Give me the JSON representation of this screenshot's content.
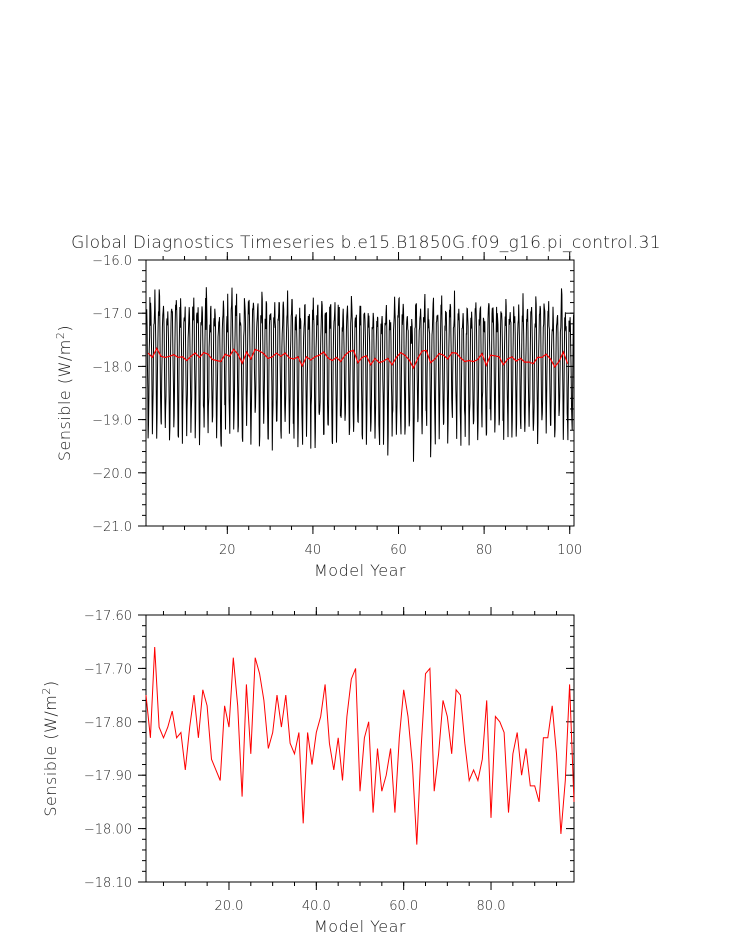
{
  "title": "Global Diagnostics Timeseries b.e15.B1850G.f09_g16.pi_control.31",
  "chart_data": [
    {
      "type": "line",
      "xlabel": "Model Year",
      "ylabel": "Sensible (W/m²)",
      "xlim": [
        1,
        101
      ],
      "ylim": [
        -21.0,
        -16.0
      ],
      "x_ticks": [
        20,
        40,
        60,
        80,
        100
      ],
      "x_tick_labels": [
        "20",
        "40",
        "60",
        "80",
        "100"
      ],
      "y_ticks": [
        -16.0,
        -17.0,
        -18.0,
        -19.0,
        -20.0,
        -21.0
      ],
      "y_tick_labels": [
        "-16.0",
        "-17.0",
        "-18.0",
        "-19.0",
        "-20.0",
        "-21.0"
      ],
      "series": [
        {
          "color": "#000000",
          "description_values": "monthly values, 1200 points, seasonal cycle between about -20.3 and -16.2",
          "monthly_pattern": [
            -17.2,
            -17.0,
            -17.1,
            -17.5,
            -18.1,
            -18.8,
            -19.3,
            -19.2,
            -18.6,
            -17.9,
            -17.4,
            -17.2
          ]
        },
        {
          "color": "#ff0000",
          "ref": "annual_means"
        }
      ],
      "grid": false
    },
    {
      "type": "line",
      "xlabel": "Model Year",
      "ylabel": "Sensible (W/m²)",
      "xlim": [
        1,
        99
      ],
      "ylim": [
        -18.1,
        -17.6
      ],
      "x_ticks": [
        20.0,
        40.0,
        60.0,
        80.0
      ],
      "x_tick_labels": [
        "20.0",
        "40.0",
        "60.0",
        "80.0"
      ],
      "y_ticks": [
        -17.6,
        -17.7,
        -17.8,
        -17.9,
        -18.0,
        -18.1
      ],
      "y_tick_labels": [
        "-17.60",
        "-17.70",
        "-17.80",
        "-17.90",
        "-18.00",
        "-18.10"
      ],
      "series": [
        {
          "color": "#ff0000",
          "x_start": 1,
          "values": [
            -17.75,
            -17.83,
            -17.66,
            -17.81,
            -17.83,
            -17.81,
            -17.78,
            -17.83,
            -17.82,
            -17.89,
            -17.81,
            -17.75,
            -17.83,
            -17.74,
            -17.77,
            -17.87,
            -17.89,
            -17.91,
            -17.77,
            -17.81,
            -17.68,
            -17.77,
            -17.94,
            -17.73,
            -17.86,
            -17.68,
            -17.71,
            -17.76,
            -17.85,
            -17.82,
            -17.75,
            -17.81,
            -17.75,
            -17.84,
            -17.86,
            -17.82,
            -17.99,
            -17.82,
            -17.88,
            -17.82,
            -17.79,
            -17.73,
            -17.84,
            -17.89,
            -17.83,
            -17.91,
            -17.79,
            -17.72,
            -17.7,
            -17.93,
            -17.83,
            -17.8,
            -17.97,
            -17.85,
            -17.93,
            -17.9,
            -17.85,
            -17.97,
            -17.83,
            -17.74,
            -17.79,
            -17.88,
            -18.03,
            -17.85,
            -17.71,
            -17.7,
            -17.93,
            -17.86,
            -17.76,
            -17.79,
            -17.86,
            -17.74,
            -17.75,
            -17.84,
            -17.91,
            -17.89,
            -17.91,
            -17.87,
            -17.76,
            -17.98,
            -17.79,
            -17.8,
            -17.82,
            -17.97,
            -17.86,
            -17.82,
            -17.9,
            -17.85,
            -17.92,
            -17.92,
            -17.95,
            -17.83,
            -17.83,
            -17.77,
            -17.86,
            -18.01,
            -17.91,
            -17.73,
            -17.95
          ]
        }
      ],
      "grid": false
    }
  ]
}
